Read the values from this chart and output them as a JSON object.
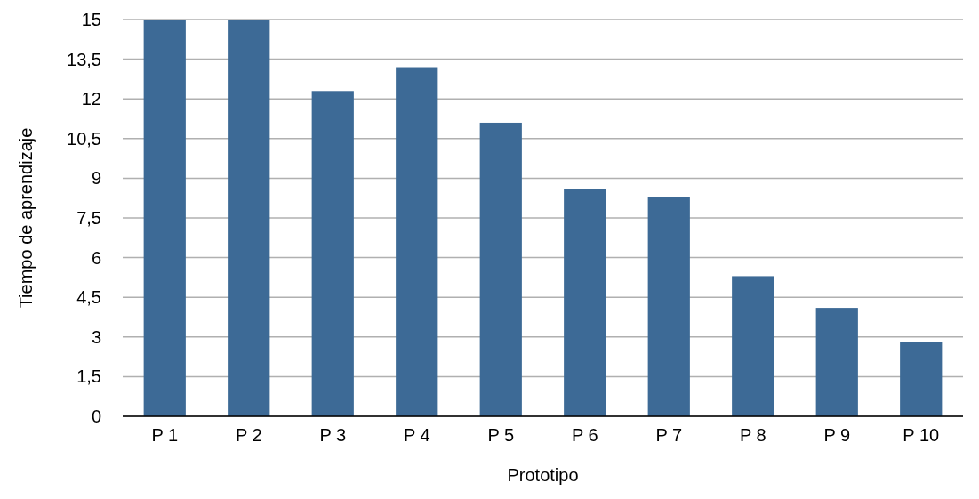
{
  "chart_data": {
    "type": "bar",
    "xlabel": "Prototipo",
    "ylabel": "Tiempo de aprendizaje",
    "categories": [
      "P 1",
      "P 2",
      "P 3",
      "P 4",
      "P 5",
      "P 6",
      "P 7",
      "P 8",
      "P 9",
      "P 10"
    ],
    "values": [
      15,
      15,
      12.3,
      13.2,
      11.1,
      8.6,
      8.3,
      5.3,
      4.1,
      2.8
    ],
    "color": "#3d6a96",
    "ylim": [
      0,
      15
    ],
    "yticks": [
      0,
      {
        "value": 1.5,
        "label": "1,5"
      },
      3,
      {
        "value": 4.5,
        "label": "4,5"
      },
      6,
      {
        "value": 7.5,
        "label": "7,5"
      },
      9,
      {
        "value": 10.5,
        "label": "10,5"
      },
      12,
      {
        "value": 13.5,
        "label": "13,5"
      },
      15
    ],
    "grid": "y"
  }
}
